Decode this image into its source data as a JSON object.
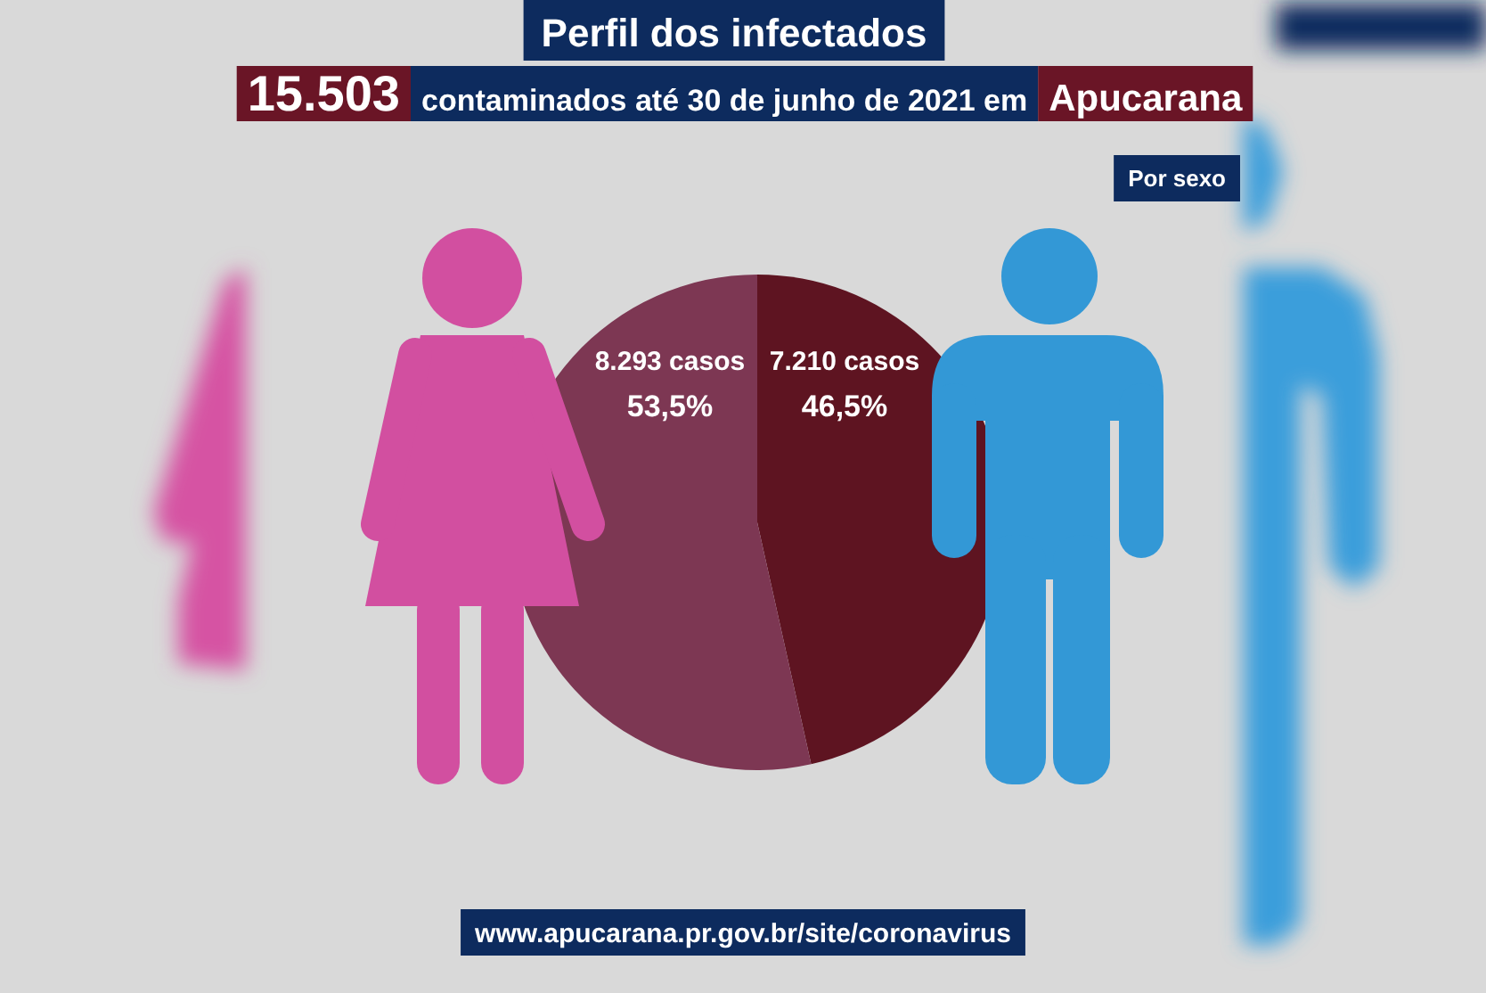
{
  "chart_data": {
    "type": "pie",
    "title": "Perfil dos infectados",
    "subtitle": "15.503 contaminados até 30 de junho de 2021 em Apucarana",
    "categories": [
      null,
      null
    ],
    "values": [
      7210,
      8293
    ],
    "colors": [
      "#5e1421",
      "#7d3753"
    ],
    "value_labels": [
      "7.210 casos\n46,5%",
      "8.293 casos\n53,5%"
    ],
    "annotations": [
      "Por sexo",
      "www.apucarana.pr.gov.br/site/coronavirus"
    ]
  }
}
